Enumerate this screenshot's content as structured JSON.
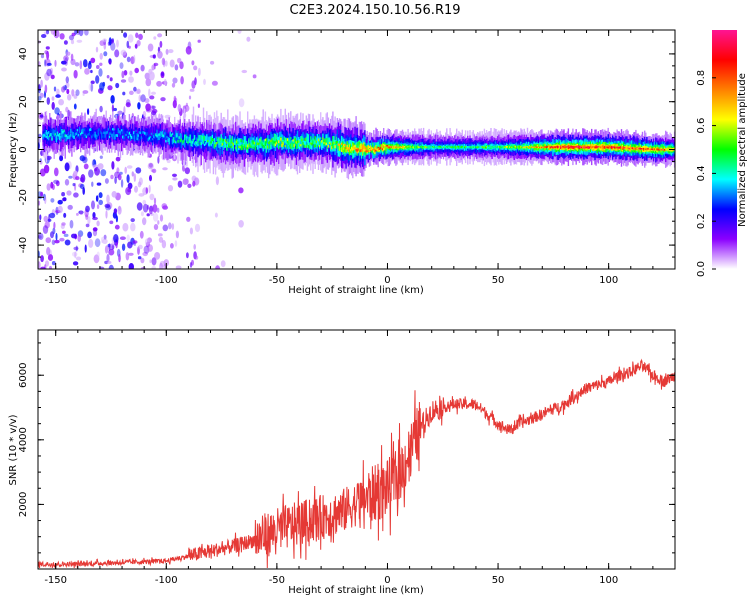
{
  "title": "C2E3.2024.150.10.56.R19",
  "colors": {
    "snr_line": "#e53935",
    "colorbar_stops": [
      "#ffffff",
      "#8b00ff",
      "#0000ff",
      "#00ffff",
      "#00ff00",
      "#ffff00",
      "#ff8000",
      "#ff0000",
      "#ff1493"
    ]
  },
  "chart_data": [
    {
      "type": "heatmap",
      "title": "C2E3.2024.150.10.56.R19",
      "xlabel": "Height of straight line (km)",
      "ylabel": "Frequency (Hz)",
      "xlim": [
        -158,
        130
      ],
      "ylim": [
        -50,
        50
      ],
      "x_ticks": [
        -150,
        -100,
        -50,
        0,
        50,
        100
      ],
      "y_ticks": [
        -40,
        -20,
        0,
        20,
        40
      ],
      "colorbar": {
        "label": "Normalized spectral amplitude",
        "range": [
          0,
          1
        ],
        "ticks": [
          0.0,
          0.2,
          0.4,
          0.6,
          0.8
        ],
        "colormap": "white-violet-blue-cyan-green-yellow-red-pink"
      },
      "ridge": {
        "x": [
          -150,
          -130,
          -110,
          -100,
          -90,
          -80,
          -70,
          -60,
          -50,
          -40,
          -30,
          -20,
          -10,
          0,
          10,
          20,
          40,
          60,
          80,
          100,
          120,
          130
        ],
        "center_hz": [
          6,
          7,
          6,
          5,
          4,
          3,
          2,
          2,
          3,
          3,
          3,
          1,
          0,
          1,
          1,
          1,
          1,
          1,
          1,
          1,
          0,
          0
        ],
        "peak_amplitude": [
          0.4,
          0.35,
          0.35,
          0.4,
          0.45,
          0.5,
          0.55,
          0.55,
          0.6,
          0.55,
          0.55,
          0.7,
          0.8,
          0.8,
          0.6,
          0.5,
          0.5,
          0.6,
          0.95,
          0.9,
          0.85,
          0.7
        ]
      },
      "noise_region_x": [
        -158,
        -85
      ]
    },
    {
      "type": "line",
      "xlabel": "Height of straight line (km)",
      "ylabel": "SNR (10 * v/v)",
      "xlim": [
        -158,
        130
      ],
      "ylim": [
        0,
        7400
      ],
      "x_ticks": [
        -150,
        -100,
        -50,
        0,
        50,
        100
      ],
      "y_ticks": [
        2000,
        4000,
        6000
      ],
      "x": [
        -158,
        -140,
        -120,
        -100,
        -90,
        -80,
        -70,
        -60,
        -50,
        -40,
        -30,
        -20,
        -10,
        0,
        5,
        10,
        15,
        20,
        30,
        40,
        50,
        55,
        60,
        70,
        80,
        90,
        100,
        105,
        110,
        115,
        120,
        125,
        130
      ],
      "y": [
        150,
        150,
        200,
        250,
        400,
        550,
        700,
        900,
        1200,
        1400,
        1600,
        1800,
        2200,
        2500,
        2900,
        3600,
        4400,
        4900,
        5100,
        5100,
        4500,
        4300,
        4500,
        4800,
        5100,
        5600,
        5800,
        6000,
        6100,
        6300,
        6000,
        5800,
        6000
      ]
    }
  ]
}
